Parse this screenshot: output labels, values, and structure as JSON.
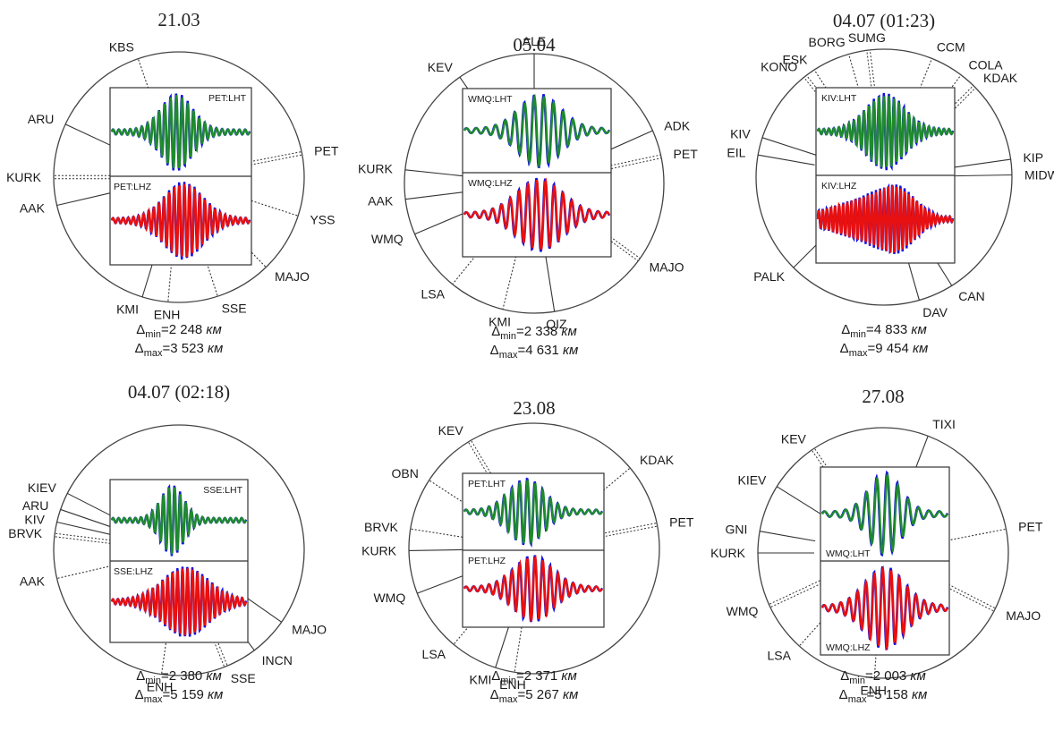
{
  "colors": {
    "observed": "#1010e0",
    "synthetic_lht": "#1f8a2e",
    "synthetic_lhz": "#e81010"
  },
  "panels": [
    {
      "title": "21.03",
      "lht_tag": "PET:LHT",
      "lhz_tag": "PET:LHZ",
      "stations": [
        {
          "name": "KBS",
          "az": -19,
          "line": "dotted"
        },
        {
          "name": "ARU",
          "az": -65,
          "line": "solid"
        },
        {
          "name": "PET",
          "az": 79,
          "line": "double-dotted"
        },
        {
          "name": "KURK",
          "az": -90,
          "line": "double-dotted"
        },
        {
          "name": "AAK",
          "az": -103,
          "line": "solid"
        },
        {
          "name": "YSS",
          "az": 108,
          "line": "dotted"
        },
        {
          "name": "MAJO",
          "az": 136,
          "line": "dotted"
        },
        {
          "name": "KMI",
          "az": -163,
          "line": "solid"
        },
        {
          "name": "ENH",
          "az": -175,
          "line": "dotted"
        },
        {
          "name": "SSE",
          "az": 162,
          "line": "dotted"
        }
      ],
      "dmin_value": "2 248",
      "dmax_value": "3 523",
      "unit": "км"
    },
    {
      "title": "05.04",
      "lht_tag": "WMQ:LHT",
      "lhz_tag": "WMQ:LHZ",
      "stations": [
        {
          "name": "ALE",
          "az": 0,
          "line": "solid"
        },
        {
          "name": "KEV",
          "az": -35,
          "line": "solid"
        },
        {
          "name": "ADK",
          "az": 66,
          "line": "solid"
        },
        {
          "name": "PET",
          "az": 78,
          "line": "double-dotted"
        },
        {
          "name": "KURK",
          "az": -84,
          "line": "solid"
        },
        {
          "name": "AAK",
          "az": -97,
          "line": "solid"
        },
        {
          "name": "WMQ",
          "az": -113,
          "line": "solid"
        },
        {
          "name": "MAJO",
          "az": 126,
          "line": "double-dotted"
        },
        {
          "name": "LSA",
          "az": -141,
          "line": "dotted"
        },
        {
          "name": "KMI",
          "az": -166,
          "line": "dotted"
        },
        {
          "name": "QIZ",
          "az": 171,
          "line": "solid"
        }
      ],
      "dmin_value": "2 338",
      "dmax_value": "4 631",
      "unit": "км"
    },
    {
      "title": "04.07 (01:23)",
      "lht_tag": "KIV:LHT",
      "lhz_tag": "KIV:LHZ",
      "stations": [
        {
          "name": "BORG",
          "az": -16,
          "line": "dotted"
        },
        {
          "name": "SUMG",
          "az": -7,
          "line": "double-dotted"
        },
        {
          "name": "CCM",
          "az": 22,
          "line": "dotted"
        },
        {
          "name": "ESK",
          "az": -33,
          "line": "dotted"
        },
        {
          "name": "KONO",
          "az": -38,
          "line": "double-dotted"
        },
        {
          "name": "COLA",
          "az": 37,
          "line": "dotted"
        },
        {
          "name": "KDAK",
          "az": 45,
          "line": "double-dotted"
        },
        {
          "name": "KIV",
          "az": -72,
          "line": "solid"
        },
        {
          "name": "EIL",
          "az": -80,
          "line": "solid"
        },
        {
          "name": "KIP",
          "az": 82,
          "line": "solid"
        },
        {
          "name": "MIDW",
          "az": 89,
          "line": "solid"
        },
        {
          "name": "PALK",
          "az": -135,
          "line": "solid"
        },
        {
          "name": "CAN",
          "az": 148,
          "line": "solid"
        },
        {
          "name": "DAV",
          "az": 164,
          "line": "solid"
        }
      ],
      "dmin_value": "4 833",
      "dmax_value": "9 454",
      "unit": "км"
    },
    {
      "title": "04.07 (02:18)",
      "lht_tag": "SSE:LHT",
      "lhz_tag": "SSE:LHZ",
      "stations": [
        {
          "name": "KIEV",
          "az": -63,
          "line": "solid"
        },
        {
          "name": "ARU",
          "az": -71,
          "line": "solid"
        },
        {
          "name": "KIV",
          "az": -77,
          "line": "solid"
        },
        {
          "name": "BRVK",
          "az": -83,
          "line": "double-dotted"
        },
        {
          "name": "AAK",
          "az": -103,
          "line": "dotted"
        },
        {
          "name": "MAJO",
          "az": 125,
          "line": "solid"
        },
        {
          "name": "INCN",
          "az": 143,
          "line": "solid"
        },
        {
          "name": "SSE",
          "az": 158,
          "line": "double-dotted"
        },
        {
          "name": "ENH",
          "az": -172,
          "line": "dotted"
        }
      ],
      "dmin_value": "2 380",
      "dmax_value": "5 159",
      "unit": "км"
    },
    {
      "title": "23.08",
      "lht_tag": "PET:LHT",
      "lhz_tag": "PET:LHZ",
      "stations": [
        {
          "name": "KEV",
          "az": -31,
          "line": "double-dotted"
        },
        {
          "name": "KDAK",
          "az": 50,
          "line": "dotted"
        },
        {
          "name": "OBN",
          "az": -57,
          "line": "dotted"
        },
        {
          "name": "PET",
          "az": 79,
          "line": "double-dotted"
        },
        {
          "name": "BRVK",
          "az": -81,
          "line": "dotted"
        },
        {
          "name": "KURK",
          "az": -91,
          "line": "solid"
        },
        {
          "name": "WMQ",
          "az": -111,
          "line": "solid"
        },
        {
          "name": "LSA",
          "az": -140,
          "line": "dotted"
        },
        {
          "name": "KMI",
          "az": -162,
          "line": "solid"
        },
        {
          "name": "ENH",
          "az": -171,
          "line": "dotted"
        }
      ],
      "dmin_value": "2 371",
      "dmax_value": "5 267",
      "unit": "км"
    },
    {
      "title": "27.08",
      "lht_tag": "WMQ:LHT",
      "lhz_tag": "WMQ:LHZ",
      "stations": [
        {
          "name": "TIXI",
          "az": 21,
          "line": "solid"
        },
        {
          "name": "KEV",
          "az": -34,
          "line": "double-dotted"
        },
        {
          "name": "KIEV",
          "az": -58,
          "line": "solid"
        },
        {
          "name": "PET",
          "az": 79,
          "line": "dotted"
        },
        {
          "name": "GNI",
          "az": -80,
          "line": "solid"
        },
        {
          "name": "KURK",
          "az": -90,
          "line": "solid"
        },
        {
          "name": "WMQ",
          "az": -115,
          "line": "double-dotted"
        },
        {
          "name": "MAJO",
          "az": 117,
          "line": "double-dotted"
        },
        {
          "name": "LSA",
          "az": -138,
          "line": "dotted"
        },
        {
          "name": "ENH",
          "az": -176,
          "line": "dotted"
        }
      ],
      "dmin_value": "2 003",
      "dmax_value": "5 158",
      "unit": "км"
    }
  ]
}
